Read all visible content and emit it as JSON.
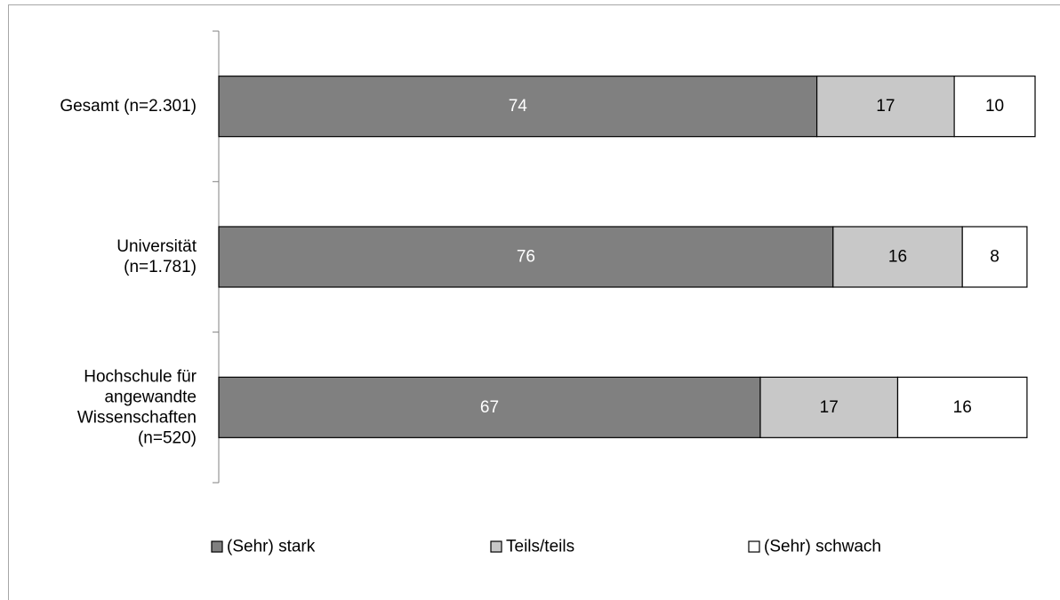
{
  "chart_data": {
    "type": "bar",
    "orientation": "horizontal",
    "stacked": true,
    "categories": [
      [
        "Gesamt (n=2.301)"
      ],
      [
        "Universität",
        "(n=1.781)"
      ],
      [
        "Hochschule für",
        "angewandte",
        "Wissenschaften",
        "(n=520)"
      ]
    ],
    "series": [
      {
        "name": "(Sehr) stark",
        "values": [
          74,
          76,
          67
        ],
        "color": "#808080",
        "label_color": "#ffffff"
      },
      {
        "name": "Teils/teils",
        "values": [
          17,
          16,
          17
        ],
        "color": "#c8c8c8",
        "label_color": "#000000"
      },
      {
        "name": "(Sehr) schwach",
        "values": [
          10,
          8,
          16
        ],
        "color": "#ffffff",
        "label_color": "#000000"
      }
    ],
    "legend_position": "bottom",
    "grid": false,
    "xlabel": "",
    "ylabel": ""
  }
}
